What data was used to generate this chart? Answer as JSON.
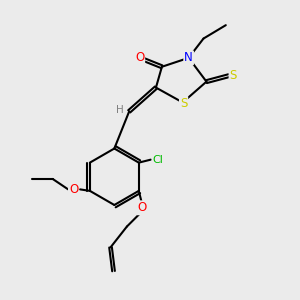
{
  "bg_color": "#ebebeb",
  "bond_color": "#000000",
  "atom_colors": {
    "O": "#ff0000",
    "N": "#0000ff",
    "S": "#cccc00",
    "Cl": "#00bb00",
    "H": "#808080",
    "C": "#000000"
  },
  "figsize": [
    3.0,
    3.0
  ],
  "dpi": 100
}
